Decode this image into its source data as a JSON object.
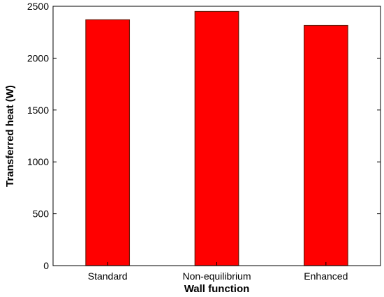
{
  "chart_data": {
    "type": "bar",
    "categories": [
      "Standard",
      "Non-equilibrium",
      "Enhanced"
    ],
    "values": [
      2370,
      2450,
      2315
    ],
    "title": "",
    "xlabel": "Wall function",
    "ylabel": "Transferred heat (W)",
    "ylim": [
      0,
      2500
    ],
    "yticks": [
      0,
      500,
      1000,
      1500,
      2000,
      2500
    ],
    "grid": false,
    "colors": {
      "bar_fill": "#ff0000",
      "bar_edge": "#6b1a0a",
      "axis": "#000000",
      "background": "#ffffff"
    }
  }
}
